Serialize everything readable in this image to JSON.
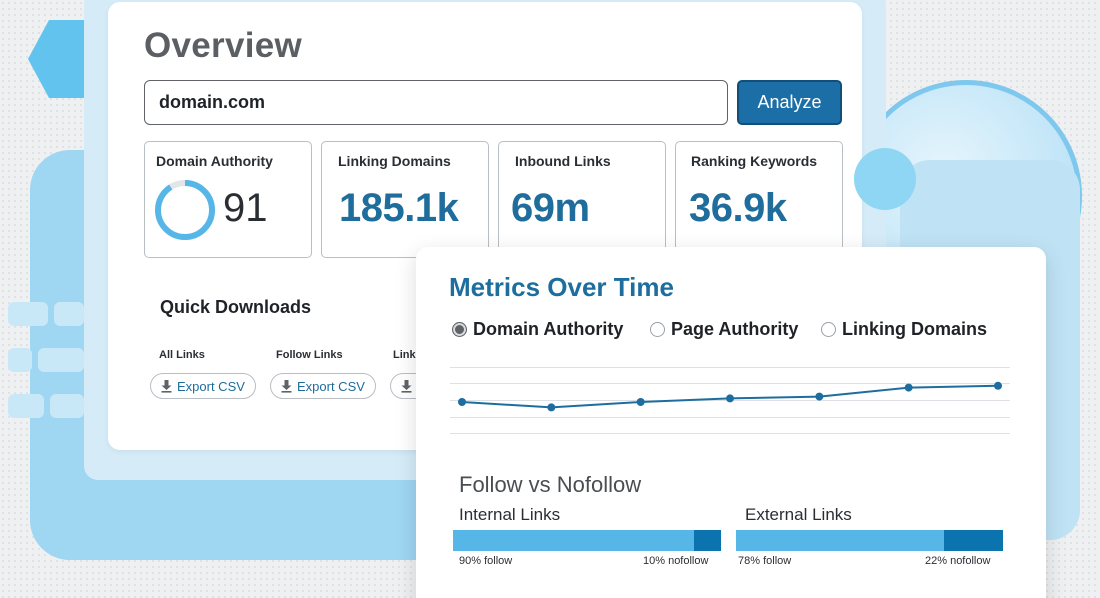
{
  "overview": {
    "title": "Overview",
    "domain_input_value": "domain.com",
    "analyze_label": "Analyze",
    "metrics": [
      {
        "label": "Domain Authority",
        "value": "91",
        "ring_fill": 0.91
      },
      {
        "label": "Linking Domains",
        "value": "185.1k"
      },
      {
        "label": "Inbound Links",
        "value": "69m"
      },
      {
        "label": "Ranking Keywords",
        "value": "36.9k"
      }
    ],
    "quick_downloads": {
      "title": "Quick Downloads",
      "columns": [
        {
          "label": "All Links",
          "button": "Export CSV"
        },
        {
          "label": "Follow Links",
          "button": "Export CSV"
        },
        {
          "label": "Link",
          "button": ""
        }
      ]
    }
  },
  "metrics_over_time": {
    "title": "Metrics Over Time",
    "options": [
      {
        "label": "Domain Authority",
        "selected": true
      },
      {
        "label": "Page Authority",
        "selected": false
      },
      {
        "label": "Linking Domains",
        "selected": false
      }
    ],
    "chart_data": {
      "type": "line",
      "series": [
        {
          "values": [
            45,
            42,
            45,
            47,
            48,
            53,
            54
          ]
        }
      ],
      "ylim": [
        30,
        60
      ],
      "grid": true
    }
  },
  "follow_vs_nofollow": {
    "title": "Follow vs Nofollow",
    "internal": {
      "label": "Internal Links",
      "follow_pct": 90,
      "follow_text": "90% follow",
      "nofollow_text": "10% nofollow"
    },
    "external": {
      "label": "External Links",
      "follow_pct": 78,
      "follow_text": "78% follow",
      "nofollow_text": "22% nofollow"
    }
  },
  "colors": {
    "accent": "#1d6e9e",
    "button": "#1b6fa6",
    "follow": "#56b6e8",
    "nofollow": "#0b74ae",
    "ring": "#56b6e8"
  },
  "icons": {
    "download": "download-icon"
  }
}
